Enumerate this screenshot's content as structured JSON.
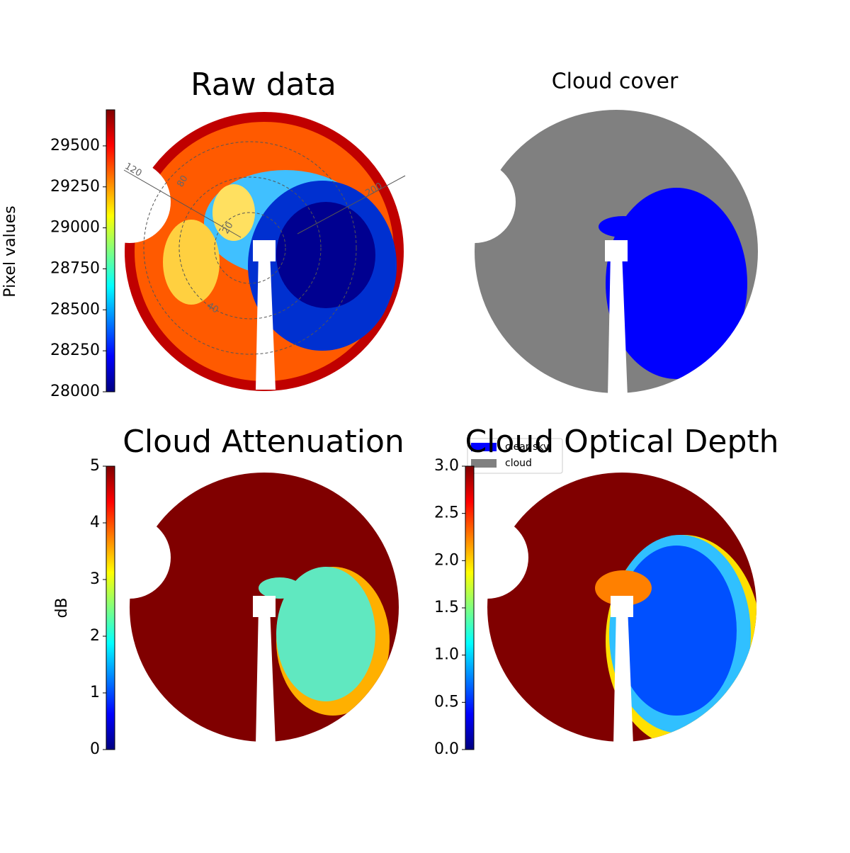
{
  "chart_data": [
    {
      "type": "image",
      "title": "Raw data",
      "colormap": "jet",
      "colorbar": {
        "label": "Pixel values",
        "ylim": [
          28000,
          29720
        ],
        "yticks": [
          28000,
          28250,
          28500,
          28750,
          29000,
          29250,
          29500
        ]
      },
      "annotations": [
        "120",
        "80",
        "20",
        "40",
        "200"
      ]
    },
    {
      "type": "image",
      "title": "Cloud cover",
      "series": [
        {
          "name": "clear sky",
          "color": "#0000ff"
        },
        {
          "name": "cloud",
          "color": "#808080"
        }
      ]
    },
    {
      "type": "image",
      "title": "Cloud Attenuation",
      "colormap": "jet",
      "colorbar": {
        "label": "dB",
        "ylim": [
          0,
          5
        ],
        "yticks": [
          0,
          1,
          2,
          3,
          4,
          5
        ]
      }
    },
    {
      "type": "image",
      "title": "Cloud Optical Depth",
      "colormap": "jet",
      "colorbar": {
        "ylim": [
          0,
          3
        ],
        "yticks": [
          {
            "value": 0,
            "label": "0.0"
          },
          {
            "value": 0.5,
            "label": "0.5"
          },
          {
            "value": 1,
            "label": "1.0"
          },
          {
            "value": 1.5,
            "label": "1.5"
          },
          {
            "value": 2,
            "label": "2.0"
          },
          {
            "value": 2.5,
            "label": "2.5"
          },
          {
            "value": 3,
            "label": "3.0"
          }
        ]
      }
    }
  ]
}
